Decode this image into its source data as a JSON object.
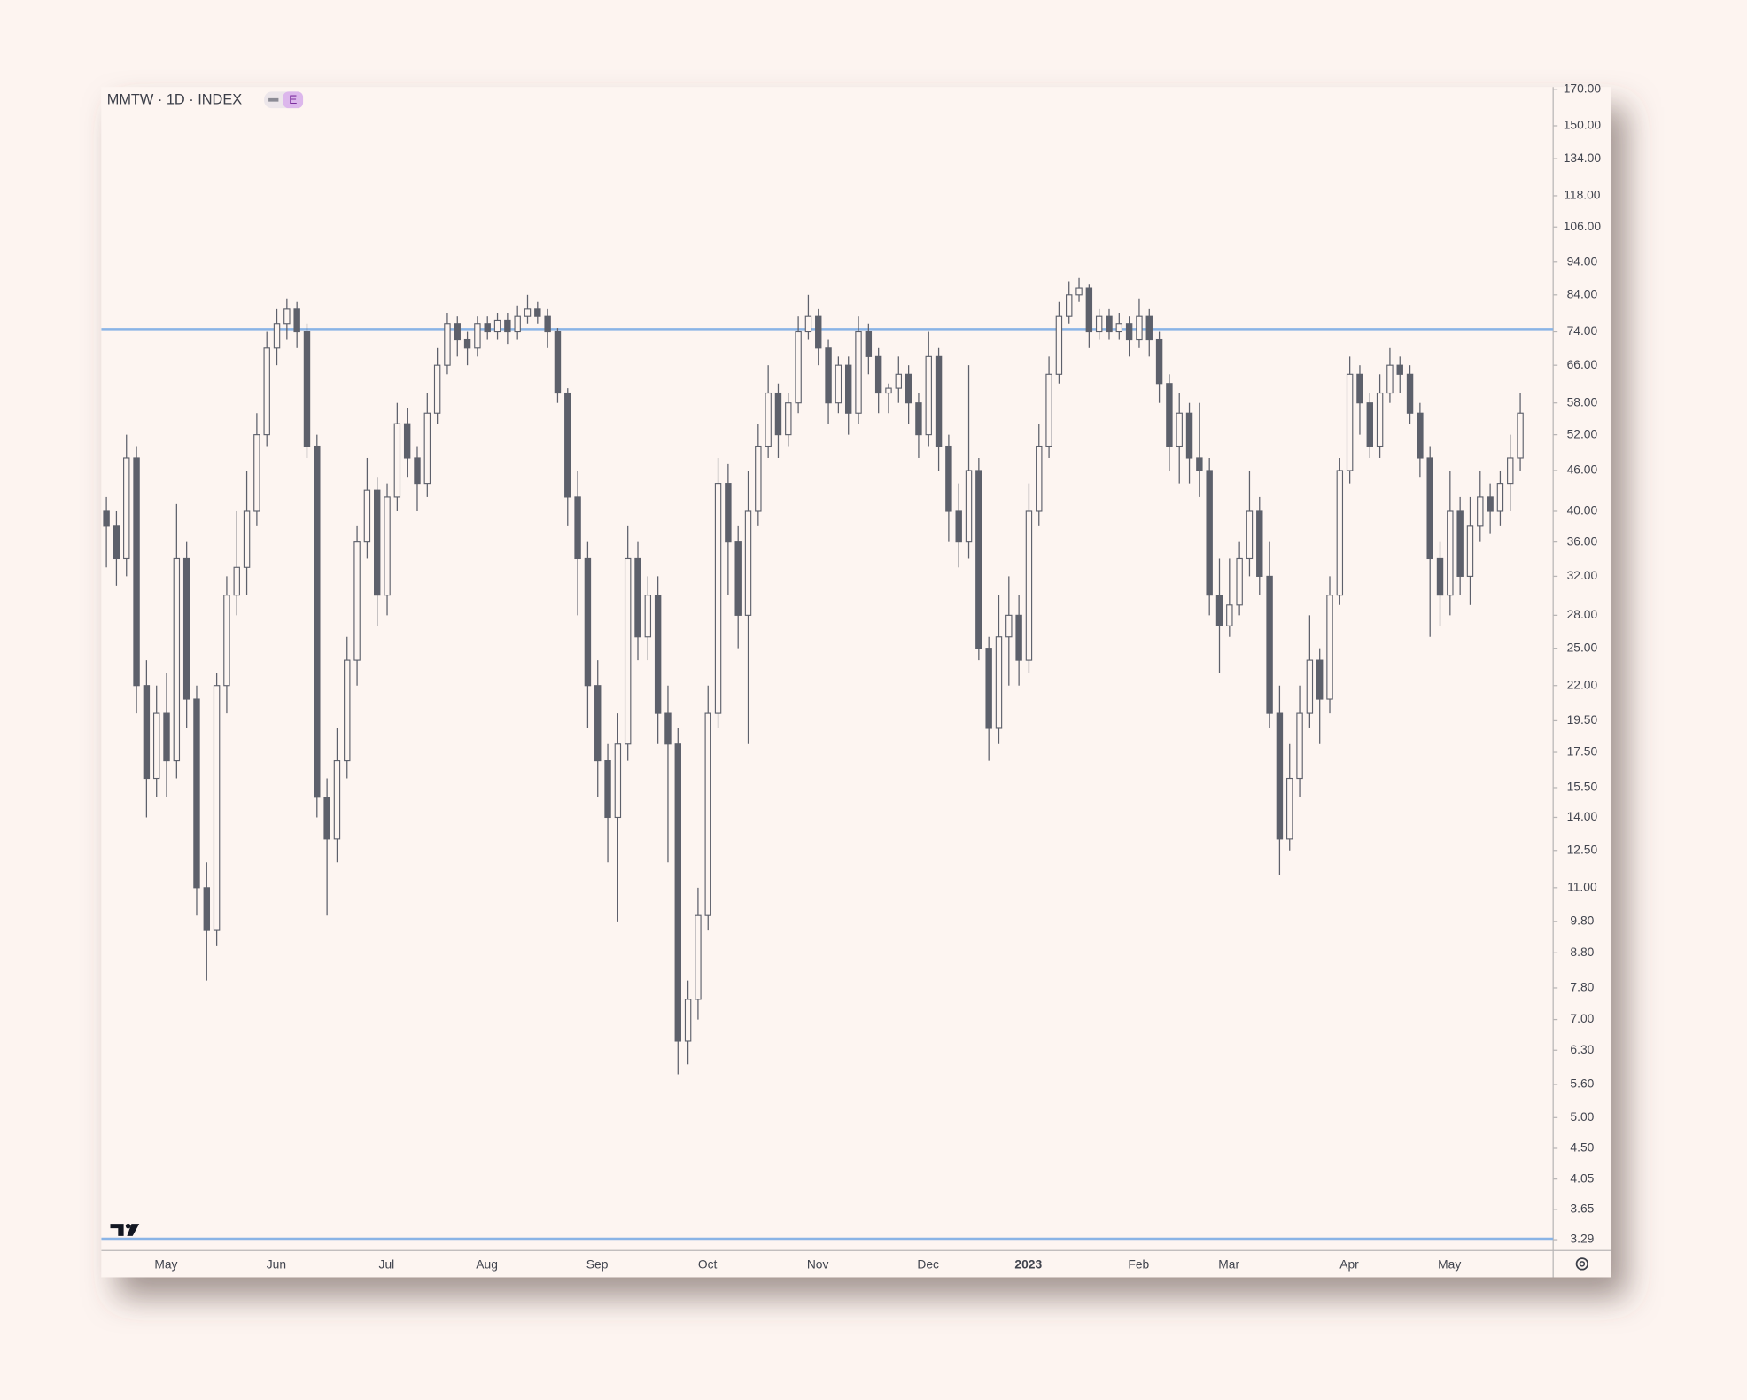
{
  "chart_data": {
    "type": "candlestick",
    "title": "MMTW · 1D · INDEX",
    "badge": "E",
    "log_scale": true,
    "grid": false,
    "up_color": "#fdf5f1",
    "down_color": "#5d606b",
    "outline_color": "#5d606b",
    "hline_color": "#8ab4e6",
    "hlines": [
      74.7,
      3.3
    ],
    "ylim": [
      3.17,
      171.3
    ],
    "yticks": [
      {
        "value": 170,
        "label": "170.00"
      },
      {
        "value": 150,
        "label": "150.00"
      },
      {
        "value": 134,
        "label": "134.00"
      },
      {
        "value": 118,
        "label": "118.00"
      },
      {
        "value": 106,
        "label": "106.00"
      },
      {
        "value": 94,
        "label": "94.00"
      },
      {
        "value": 84,
        "label": "84.00"
      },
      {
        "value": 74,
        "label": "74.00"
      },
      {
        "value": 66,
        "label": "66.00"
      },
      {
        "value": 58,
        "label": "58.00"
      },
      {
        "value": 52,
        "label": "52.00"
      },
      {
        "value": 46,
        "label": "46.00"
      },
      {
        "value": 40,
        "label": "40.00"
      },
      {
        "value": 36,
        "label": "36.00"
      },
      {
        "value": 32,
        "label": "32.00"
      },
      {
        "value": 28,
        "label": "28.00"
      },
      {
        "value": 25,
        "label": "25.00"
      },
      {
        "value": 22,
        "label": "22.00"
      },
      {
        "value": 19.5,
        "label": "19.50"
      },
      {
        "value": 17.5,
        "label": "17.50"
      },
      {
        "value": 15.5,
        "label": "15.50"
      },
      {
        "value": 14,
        "label": "14.00"
      },
      {
        "value": 12.5,
        "label": "12.50"
      },
      {
        "value": 11,
        "label": "11.00"
      },
      {
        "value": 9.8,
        "label": "9.80"
      },
      {
        "value": 8.8,
        "label": "8.80"
      },
      {
        "value": 7.8,
        "label": "7.80"
      },
      {
        "value": 7,
        "label": "7.00"
      },
      {
        "value": 6.3,
        "label": "6.30"
      },
      {
        "value": 5.6,
        "label": "5.60"
      },
      {
        "value": 5,
        "label": "5.00"
      },
      {
        "value": 4.5,
        "label": "4.50"
      },
      {
        "value": 4.05,
        "label": "4.05"
      },
      {
        "value": 3.65,
        "label": "3.65"
      },
      {
        "value": 3.29,
        "label": "3.29"
      }
    ],
    "categories": [
      null,
      null,
      null,
      null,
      null,
      null,
      "May",
      null,
      null,
      null,
      null,
      null,
      null,
      null,
      null,
      null,
      null,
      "Jun",
      null,
      null,
      null,
      null,
      null,
      null,
      null,
      null,
      null,
      null,
      "Jul",
      null,
      null,
      null,
      null,
      null,
      null,
      null,
      null,
      null,
      "Aug",
      null,
      null,
      null,
      null,
      null,
      null,
      null,
      null,
      null,
      null,
      "Sep",
      null,
      null,
      null,
      null,
      null,
      null,
      null,
      null,
      null,
      null,
      "Oct",
      null,
      null,
      null,
      null,
      null,
      null,
      null,
      null,
      null,
      null,
      "Nov",
      null,
      null,
      null,
      null,
      null,
      null,
      null,
      null,
      null,
      null,
      "Dec",
      null,
      null,
      null,
      null,
      null,
      null,
      null,
      null,
      null,
      "2023",
      null,
      null,
      null,
      null,
      null,
      null,
      null,
      null,
      null,
      null,
      "Feb",
      null,
      null,
      null,
      null,
      null,
      null,
      null,
      null,
      "Mar",
      null,
      null,
      null,
      null,
      null,
      null,
      null,
      null,
      null,
      null,
      null,
      "Apr",
      null,
      null,
      null,
      null,
      null,
      null,
      null,
      null,
      null,
      "May",
      null,
      null,
      null,
      null,
      null,
      null,
      null
    ],
    "ohlc": [
      [
        40,
        42,
        33,
        38
      ],
      [
        38,
        40,
        31,
        34
      ],
      [
        34,
        52,
        32,
        48
      ],
      [
        48,
        50,
        20,
        22
      ],
      [
        22,
        24,
        14,
        16
      ],
      [
        16,
        22,
        15,
        20
      ],
      [
        20,
        23,
        15,
        17
      ],
      [
        17,
        41,
        16,
        34
      ],
      [
        34,
        36,
        19,
        21
      ],
      [
        21,
        22,
        10,
        11
      ],
      [
        11,
        12,
        8,
        9.5
      ],
      [
        9.5,
        23,
        9,
        22
      ],
      [
        22,
        32,
        20,
        30
      ],
      [
        30,
        40,
        28,
        33
      ],
      [
        33,
        46,
        30,
        40
      ],
      [
        40,
        56,
        38,
        52
      ],
      [
        52,
        74,
        50,
        70
      ],
      [
        70,
        80,
        66,
        76
      ],
      [
        76,
        83,
        72,
        80
      ],
      [
        80,
        82,
        70,
        74
      ],
      [
        74,
        76,
        48,
        50
      ],
      [
        50,
        52,
        14,
        15
      ],
      [
        15,
        16,
        10,
        13
      ],
      [
        13,
        19,
        12,
        17
      ],
      [
        17,
        26,
        16,
        24
      ],
      [
        24,
        38,
        22,
        36
      ],
      [
        36,
        48,
        34,
        43
      ],
      [
        43,
        45,
        27,
        30
      ],
      [
        30,
        44,
        28,
        42
      ],
      [
        42,
        58,
        40,
        54
      ],
      [
        54,
        57,
        45,
        48
      ],
      [
        48,
        50,
        40,
        44
      ],
      [
        44,
        60,
        42,
        56
      ],
      [
        56,
        70,
        54,
        66
      ],
      [
        66,
        79,
        64,
        76
      ],
      [
        76,
        78,
        68,
        72
      ],
      [
        72,
        74,
        66,
        70
      ],
      [
        70,
        78,
        68,
        76
      ],
      [
        76,
        78,
        72,
        74
      ],
      [
        74,
        79,
        72,
        77
      ],
      [
        77,
        79,
        71,
        74
      ],
      [
        74,
        81,
        72,
        78
      ],
      [
        78,
        84,
        76,
        80
      ],
      [
        80,
        82,
        76,
        78
      ],
      [
        78,
        80,
        70,
        74
      ],
      [
        74,
        75,
        58,
        60
      ],
      [
        60,
        61,
        38,
        42
      ],
      [
        42,
        46,
        28,
        34
      ],
      [
        34,
        36,
        19,
        22
      ],
      [
        22,
        24,
        15,
        17
      ],
      [
        17,
        18,
        12,
        14
      ],
      [
        14,
        20,
        9.8,
        18
      ],
      [
        18,
        38,
        17,
        34
      ],
      [
        34,
        36,
        24,
        26
      ],
      [
        26,
        32,
        24,
        30
      ],
      [
        30,
        32,
        18,
        20
      ],
      [
        20,
        22,
        12,
        18
      ],
      [
        18,
        19,
        5.8,
        6.5
      ],
      [
        6.5,
        8,
        6,
        7.5
      ],
      [
        7.5,
        11,
        7,
        10
      ],
      [
        10,
        22,
        9.5,
        20
      ],
      [
        20,
        48,
        19,
        44
      ],
      [
        44,
        47,
        30,
        36
      ],
      [
        36,
        38,
        25,
        28
      ],
      [
        28,
        46,
        18,
        40
      ],
      [
        40,
        54,
        38,
        50
      ],
      [
        50,
        66,
        48,
        60
      ],
      [
        60,
        62,
        48,
        52
      ],
      [
        52,
        60,
        50,
        58
      ],
      [
        58,
        78,
        56,
        74
      ],
      [
        74,
        84,
        72,
        78
      ],
      [
        78,
        80,
        66,
        70
      ],
      [
        70,
        72,
        54,
        58
      ],
      [
        58,
        68,
        56,
        66
      ],
      [
        66,
        68,
        52,
        56
      ],
      [
        56,
        78,
        54,
        74
      ],
      [
        74,
        76,
        64,
        68
      ],
      [
        68,
        70,
        56,
        60
      ],
      [
        60,
        62,
        56,
        61
      ],
      [
        61,
        68,
        58,
        64
      ],
      [
        64,
        66,
        54,
        58
      ],
      [
        58,
        60,
        48,
        52
      ],
      [
        52,
        74,
        50,
        68
      ],
      [
        68,
        70,
        46,
        50
      ],
      [
        50,
        52,
        36,
        40
      ],
      [
        40,
        44,
        33,
        36
      ],
      [
        36,
        66,
        34,
        46
      ],
      [
        46,
        48,
        24,
        25
      ],
      [
        25,
        26,
        17,
        19
      ],
      [
        19,
        30,
        18,
        26
      ],
      [
        26,
        32,
        22,
        28
      ],
      [
        28,
        30,
        22,
        24
      ],
      [
        24,
        44,
        23,
        40
      ],
      [
        40,
        54,
        38,
        50
      ],
      [
        50,
        68,
        48,
        64
      ],
      [
        64,
        82,
        62,
        78
      ],
      [
        78,
        88,
        76,
        84
      ],
      [
        84,
        89,
        82,
        86
      ],
      [
        86,
        87,
        70,
        74
      ],
      [
        74,
        80,
        72,
        78
      ],
      [
        78,
        80,
        72,
        74
      ],
      [
        74,
        79,
        72,
        76
      ],
      [
        76,
        78,
        68,
        72
      ],
      [
        72,
        83,
        70,
        78
      ],
      [
        78,
        80,
        68,
        72
      ],
      [
        72,
        74,
        58,
        62
      ],
      [
        62,
        64,
        46,
        50
      ],
      [
        50,
        60,
        44,
        56
      ],
      [
        56,
        58,
        44,
        48
      ],
      [
        48,
        58,
        42,
        46
      ],
      [
        46,
        48,
        28,
        30
      ],
      [
        30,
        34,
        23,
        27
      ],
      [
        27,
        34,
        26,
        29
      ],
      [
        29,
        36,
        28,
        34
      ],
      [
        34,
        46,
        32,
        40
      ],
      [
        40,
        42,
        30,
        32
      ],
      [
        32,
        36,
        19,
        20
      ],
      [
        20,
        22,
        11.5,
        13
      ],
      [
        13,
        18,
        12.5,
        16
      ],
      [
        16,
        22,
        15,
        20
      ],
      [
        20,
        28,
        19,
        24
      ],
      [
        24,
        25,
        18,
        21
      ],
      [
        21,
        32,
        20,
        30
      ],
      [
        30,
        48,
        29,
        46
      ],
      [
        46,
        68,
        44,
        64
      ],
      [
        64,
        66,
        52,
        58
      ],
      [
        58,
        60,
        48,
        50
      ],
      [
        50,
        64,
        48,
        60
      ],
      [
        60,
        70,
        58,
        66
      ],
      [
        66,
        68,
        60,
        64
      ],
      [
        64,
        66,
        54,
        56
      ],
      [
        56,
        58,
        45,
        48
      ],
      [
        48,
        50,
        26,
        34
      ],
      [
        34,
        36,
        27,
        30
      ],
      [
        30,
        46,
        28,
        40
      ],
      [
        40,
        42,
        30,
        32
      ],
      [
        32,
        42,
        29,
        38
      ],
      [
        38,
        46,
        36,
        42
      ],
      [
        42,
        44,
        37,
        40
      ],
      [
        40,
        46,
        38,
        44
      ],
      [
        44,
        52,
        40,
        48
      ],
      [
        48,
        60,
        46,
        56
      ]
    ]
  }
}
